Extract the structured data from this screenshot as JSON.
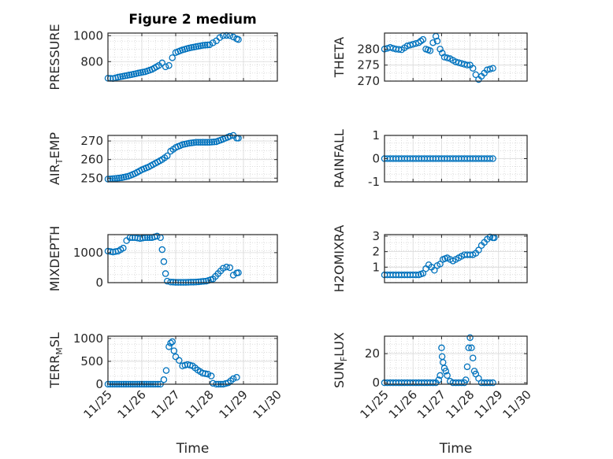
{
  "figure_title": "Figure 2 medium",
  "x_axis_label": "Time",
  "x_tick_labels": [
    "11/25",
    "11/26",
    "11/27",
    "11/28",
    "11/29",
    "11/30"
  ],
  "marker_color": "#0072BD",
  "chart_data": [
    {
      "type": "scatter",
      "ylabel": "PRESSURE",
      "title": "Figure 2 medium",
      "xlabel": "",
      "xlim": [
        0,
        5
      ],
      "ylim": [
        650,
        1020
      ],
      "yticks": [
        800,
        1000
      ],
      "x_ticks_visible": false,
      "points": [
        [
          0,
          672
        ],
        [
          0.15,
          670
        ],
        [
          0.3,
          680
        ],
        [
          0.5,
          690
        ],
        [
          0.7,
          700
        ],
        [
          0.9,
          712
        ],
        [
          1.1,
          722
        ],
        [
          1.3,
          740
        ],
        [
          1.5,
          770
        ],
        [
          1.6,
          790
        ],
        [
          1.7,
          760
        ],
        [
          1.8,
          770
        ],
        [
          1.9,
          830
        ],
        [
          2.0,
          870
        ],
        [
          2.2,
          890
        ],
        [
          2.4,
          905
        ],
        [
          2.6,
          915
        ],
        [
          2.8,
          925
        ],
        [
          3.0,
          930
        ],
        [
          3.1,
          945
        ],
        [
          3.2,
          960
        ],
        [
          3.3,
          985
        ],
        [
          3.4,
          1000
        ],
        [
          3.5,
          1002
        ],
        [
          3.6,
          1000
        ],
        [
          3.7,
          990
        ],
        [
          3.8,
          975
        ],
        [
          3.85,
          970
        ]
      ]
    },
    {
      "type": "scatter",
      "ylabel": "THETA",
      "title": "",
      "xlabel": "",
      "xlim": [
        0,
        5
      ],
      "ylim": [
        270,
        285
      ],
      "yticks": [
        270,
        275,
        280
      ],
      "x_ticks_visible": false,
      "points": [
        [
          0,
          280
        ],
        [
          0.2,
          280.5
        ],
        [
          0.4,
          280
        ],
        [
          0.6,
          279.8
        ],
        [
          0.8,
          281
        ],
        [
          1.0,
          281.5
        ],
        [
          1.2,
          282
        ],
        [
          1.35,
          283
        ],
        [
          1.45,
          280
        ],
        [
          1.6,
          279.5
        ],
        [
          1.7,
          282
        ],
        [
          1.8,
          284
        ],
        [
          1.85,
          282.5
        ],
        [
          1.95,
          280
        ],
        [
          2.1,
          277.5
        ],
        [
          2.3,
          277
        ],
        [
          2.5,
          276
        ],
        [
          2.7,
          275.5
        ],
        [
          2.9,
          275
        ],
        [
          3.0,
          275
        ],
        [
          3.1,
          274
        ],
        [
          3.2,
          272
        ],
        [
          3.3,
          270.5
        ],
        [
          3.4,
          271.5
        ],
        [
          3.5,
          272.5
        ],
        [
          3.6,
          273.5
        ],
        [
          3.8,
          274
        ]
      ]
    },
    {
      "type": "scatter",
      "ylabel": "AIR_TEMP",
      "title": "",
      "xlabel": "",
      "xlim": [
        0,
        5
      ],
      "ylim": [
        248,
        273
      ],
      "yticks": [
        250,
        260,
        270
      ],
      "x_ticks_visible": false,
      "points": [
        [
          0,
          249.5
        ],
        [
          0.2,
          249.8
        ],
        [
          0.4,
          250.2
        ],
        [
          0.6,
          251
        ],
        [
          0.8,
          252.5
        ],
        [
          1.0,
          254.5
        ],
        [
          1.2,
          256
        ],
        [
          1.4,
          258
        ],
        [
          1.6,
          260
        ],
        [
          1.75,
          262
        ],
        [
          1.85,
          264.5
        ],
        [
          2.0,
          266.5
        ],
        [
          2.2,
          268
        ],
        [
          2.4,
          268.8
        ],
        [
          2.6,
          269.3
        ],
        [
          2.8,
          269.3
        ],
        [
          3.0,
          269.3
        ],
        [
          3.2,
          269.6
        ],
        [
          3.4,
          271
        ],
        [
          3.6,
          272.5
        ],
        [
          3.7,
          273
        ],
        [
          3.8,
          271.5
        ],
        [
          3.85,
          271.5
        ]
      ]
    },
    {
      "type": "scatter",
      "ylabel": "RAINFALL",
      "title": "",
      "xlabel": "",
      "xlim": [
        0,
        5
      ],
      "ylim": [
        -1,
        1
      ],
      "yticks": [
        -1,
        0,
        1
      ],
      "x_ticks_visible": false,
      "points": [
        [
          0,
          0
        ],
        [
          0.2,
          0
        ],
        [
          0.4,
          0
        ],
        [
          0.6,
          0
        ],
        [
          0.8,
          0
        ],
        [
          1.0,
          0
        ],
        [
          1.2,
          0
        ],
        [
          1.4,
          0
        ],
        [
          1.6,
          0
        ],
        [
          1.8,
          0
        ],
        [
          2.0,
          0
        ],
        [
          2.2,
          0
        ],
        [
          2.4,
          0
        ],
        [
          2.6,
          0
        ],
        [
          2.8,
          0
        ],
        [
          3.0,
          0
        ],
        [
          3.2,
          0
        ],
        [
          3.4,
          0
        ],
        [
          3.6,
          0
        ],
        [
          3.8,
          0
        ]
      ]
    },
    {
      "type": "scatter",
      "ylabel": "MIXDEPTH",
      "title": "",
      "xlabel": "",
      "xlim": [
        0,
        5
      ],
      "ylim": [
        0,
        1600
      ],
      "yticks": [
        0,
        1000
      ],
      "x_ticks_visible": false,
      "points": [
        [
          0,
          1050
        ],
        [
          0.15,
          1020
        ],
        [
          0.3,
          1050
        ],
        [
          0.45,
          1150
        ],
        [
          0.55,
          1400
        ],
        [
          0.65,
          1500
        ],
        [
          0.8,
          1500
        ],
        [
          0.95,
          1470
        ],
        [
          1.1,
          1500
        ],
        [
          1.3,
          1500
        ],
        [
          1.45,
          1550
        ],
        [
          1.55,
          1500
        ],
        [
          1.6,
          1100
        ],
        [
          1.65,
          700
        ],
        [
          1.7,
          300
        ],
        [
          1.75,
          50
        ],
        [
          1.85,
          20
        ],
        [
          2.0,
          10
        ],
        [
          2.3,
          10
        ],
        [
          2.6,
          20
        ],
        [
          2.9,
          50
        ],
        [
          3.1,
          120
        ],
        [
          3.25,
          300
        ],
        [
          3.4,
          480
        ],
        [
          3.5,
          520
        ],
        [
          3.6,
          500
        ],
        [
          3.7,
          250
        ],
        [
          3.8,
          320
        ],
        [
          3.85,
          330
        ]
      ]
    },
    {
      "type": "scatter",
      "ylabel": "H2OMIXRA",
      "title": "",
      "xlabel": "",
      "xlim": [
        0,
        5
      ],
      "ylim": [
        0,
        3.1
      ],
      "yticks": [
        1,
        2,
        3
      ],
      "x_ticks_visible": false,
      "points": [
        [
          0,
          0.5
        ],
        [
          0.2,
          0.5
        ],
        [
          0.4,
          0.5
        ],
        [
          0.6,
          0.5
        ],
        [
          0.8,
          0.5
        ],
        [
          1.0,
          0.5
        ],
        [
          1.2,
          0.5
        ],
        [
          1.35,
          0.6
        ],
        [
          1.45,
          0.9
        ],
        [
          1.55,
          1.15
        ],
        [
          1.65,
          1.0
        ],
        [
          1.75,
          0.8
        ],
        [
          1.85,
          1.1
        ],
        [
          1.95,
          1.2
        ],
        [
          2.05,
          1.5
        ],
        [
          2.2,
          1.6
        ],
        [
          2.4,
          1.4
        ],
        [
          2.5,
          1.5
        ],
        [
          2.6,
          1.6
        ],
        [
          2.8,
          1.8
        ],
        [
          3.0,
          1.8
        ],
        [
          3.1,
          1.8
        ],
        [
          3.2,
          1.9
        ],
        [
          3.3,
          2.1
        ],
        [
          3.4,
          2.4
        ],
        [
          3.5,
          2.6
        ],
        [
          3.6,
          2.8
        ],
        [
          3.7,
          2.95
        ],
        [
          3.8,
          2.9
        ],
        [
          3.85,
          2.9
        ]
      ]
    },
    {
      "type": "scatter",
      "ylabel": "TERR_MSL",
      "title": "",
      "xlabel": "Time",
      "xlim": [
        0,
        5
      ],
      "ylim": [
        0,
        1050
      ],
      "yticks": [
        0,
        500,
        1000
      ],
      "x_ticks_visible": true,
      "points": [
        [
          0,
          0
        ],
        [
          0.2,
          0
        ],
        [
          0.4,
          0
        ],
        [
          0.6,
          0
        ],
        [
          0.8,
          0
        ],
        [
          1.0,
          0
        ],
        [
          1.2,
          0
        ],
        [
          1.4,
          0
        ],
        [
          1.55,
          0
        ],
        [
          1.65,
          100
        ],
        [
          1.72,
          300
        ],
        [
          1.8,
          820
        ],
        [
          1.85,
          900
        ],
        [
          1.9,
          930
        ],
        [
          1.95,
          730
        ],
        [
          2.0,
          600
        ],
        [
          2.1,
          520
        ],
        [
          2.2,
          400
        ],
        [
          2.35,
          430
        ],
        [
          2.5,
          400
        ],
        [
          2.65,
          310
        ],
        [
          2.8,
          240
        ],
        [
          2.95,
          220
        ],
        [
          3.05,
          180
        ],
        [
          3.1,
          20
        ],
        [
          3.2,
          0
        ],
        [
          3.4,
          0
        ],
        [
          3.55,
          30
        ],
        [
          3.7,
          120
        ],
        [
          3.8,
          150
        ]
      ]
    },
    {
      "type": "scatter",
      "ylabel": "SUN_FLUX",
      "title": "",
      "xlabel": "Time",
      "xlim": [
        0,
        5
      ],
      "ylim": [
        -1,
        32
      ],
      "yticks": [
        0,
        20
      ],
      "x_ticks_visible": true,
      "points": [
        [
          0,
          0
        ],
        [
          0.2,
          0
        ],
        [
          0.4,
          0
        ],
        [
          0.6,
          0
        ],
        [
          0.8,
          0
        ],
        [
          1.0,
          0
        ],
        [
          1.2,
          0
        ],
        [
          1.4,
          0
        ],
        [
          1.6,
          0
        ],
        [
          1.8,
          0
        ],
        [
          1.9,
          2
        ],
        [
          1.95,
          5
        ],
        [
          2.0,
          24
        ],
        [
          2.02,
          18
        ],
        [
          2.05,
          14
        ],
        [
          2.1,
          10
        ],
        [
          2.15,
          8
        ],
        [
          2.2,
          5
        ],
        [
          2.3,
          1
        ],
        [
          2.4,
          0
        ],
        [
          2.6,
          0
        ],
        [
          2.8,
          0
        ],
        [
          2.85,
          2
        ],
        [
          2.9,
          11
        ],
        [
          2.95,
          24
        ],
        [
          3.0,
          31
        ],
        [
          3.05,
          24
        ],
        [
          3.1,
          17
        ],
        [
          3.15,
          8
        ],
        [
          3.2,
          6
        ],
        [
          3.3,
          3
        ],
        [
          3.4,
          0
        ],
        [
          3.6,
          0
        ],
        [
          3.8,
          0
        ]
      ]
    }
  ]
}
